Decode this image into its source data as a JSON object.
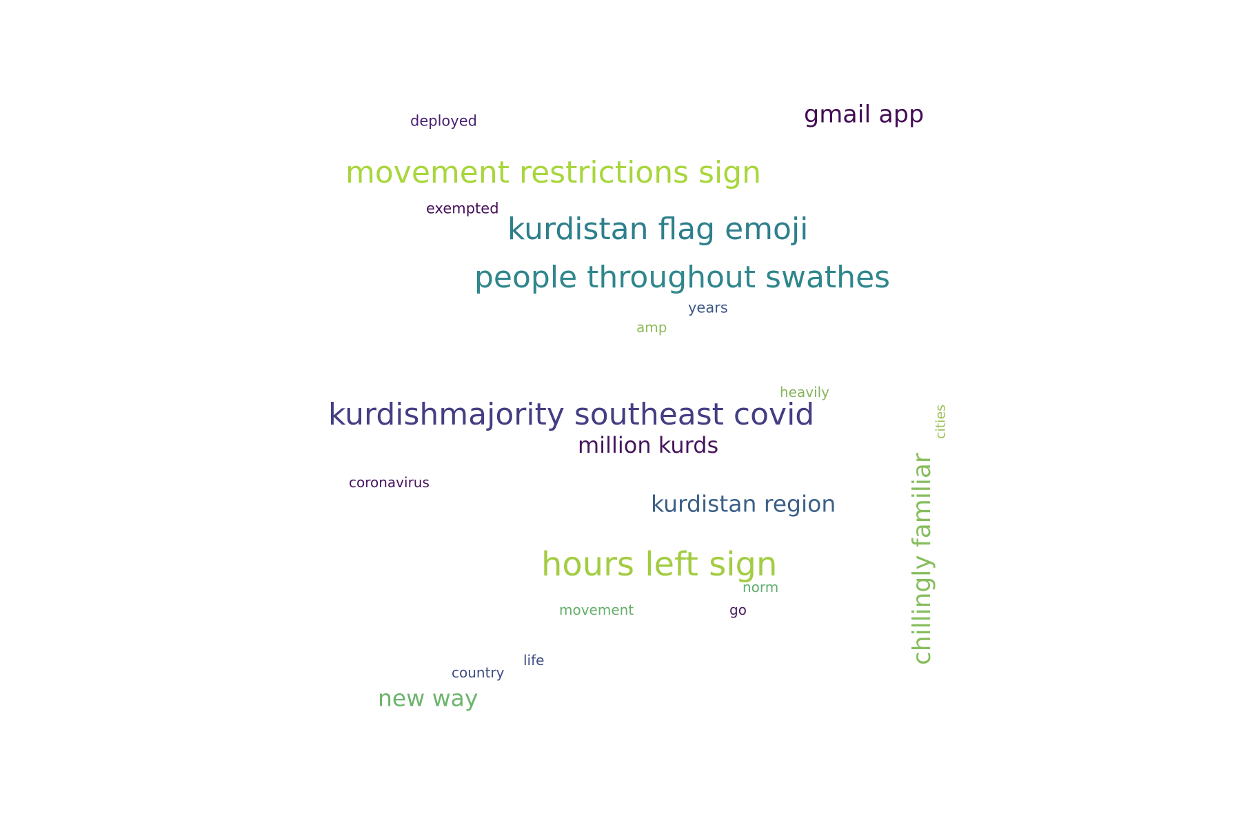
{
  "words": [
    {
      "text": "deployed",
      "color": "#482173"
    },
    {
      "text": "gmail app",
      "color": "#440d55"
    },
    {
      "text": "movement restrictions sign",
      "color": "#a8d63c"
    },
    {
      "text": "exempted",
      "color": "#46105a"
    },
    {
      "text": "kurdistan flag emoji",
      "color": "#2e7f8c"
    },
    {
      "text": "people throughout swathes",
      "color": "#2f868c"
    },
    {
      "text": "years",
      "color": "#3c5686"
    },
    {
      "text": "amp",
      "color": "#8dbb57"
    },
    {
      "text": "heavily",
      "color": "#86b45d"
    },
    {
      "text": "kurdishmajority southeast covid",
      "color": "#433e83"
    },
    {
      "text": "cities",
      "color": "#9cc15a"
    },
    {
      "text": "million kurds",
      "color": "#46155c"
    },
    {
      "text": "chillingly familiar",
      "color": "#86bd5d"
    },
    {
      "text": "coronavirus",
      "color": "#46125d"
    },
    {
      "text": "kurdistan region",
      "color": "#3c6087"
    },
    {
      "text": "hours left sign",
      "color": "#a3cc43"
    },
    {
      "text": "norm",
      "color": "#5fae6d"
    },
    {
      "text": "movement",
      "color": "#66ae6c"
    },
    {
      "text": "go",
      "color": "#48195f"
    },
    {
      "text": "life",
      "color": "#3d4b85"
    },
    {
      "text": "country",
      "color": "#3e4b83"
    },
    {
      "text": "new way",
      "color": "#6db46c"
    }
  ]
}
